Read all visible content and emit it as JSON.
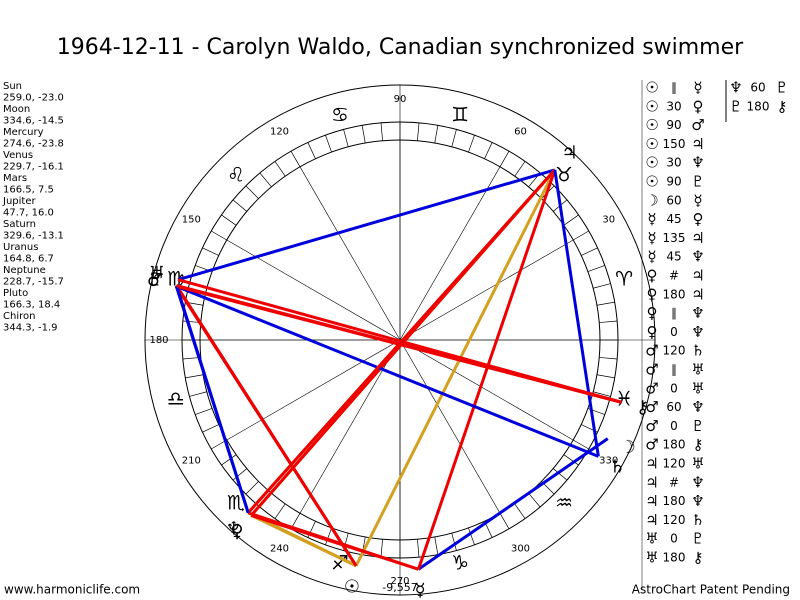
{
  "header": {
    "title": "1964-12-11 - Carolyn Waldo, Canadian synchronized swimmer"
  },
  "planets": [
    {
      "name": "Sun",
      "glyph": "☉",
      "position": "259.0, -23.0"
    },
    {
      "name": "Moon",
      "glyph": "☽",
      "position": "334.6, -14.5"
    },
    {
      "name": "Mercury",
      "glyph": "☿",
      "position": "274.6, -23.8"
    },
    {
      "name": "Venus",
      "glyph": "♀",
      "position": "229.7, -16.1"
    },
    {
      "name": "Mars",
      "glyph": "♂",
      "position": "166.5, 7.5"
    },
    {
      "name": "Jupiter",
      "glyph": "♃",
      "position": "47.7, 16.0"
    },
    {
      "name": "Saturn",
      "glyph": "♄",
      "position": "329.6, -13.1"
    },
    {
      "name": "Uranus",
      "glyph": "♅",
      "position": "164.8, 6.7"
    },
    {
      "name": "Neptune",
      "glyph": "♆",
      "position": "228.7, -15.7"
    },
    {
      "name": "Pluto",
      "glyph": "♇",
      "position": "166.3, 18.4"
    },
    {
      "name": "Chiron",
      "glyph": "⚷",
      "position": "344.3, -1.9"
    }
  ],
  "zodiac": [
    "♈",
    "♉",
    "♊",
    "♋",
    "♌",
    "♍",
    "♎",
    "♏",
    "♐",
    "♑",
    "♒",
    "♓"
  ],
  "degree_labels": [
    30,
    60,
    90,
    120,
    150,
    180,
    210,
    240,
    270,
    300,
    330
  ],
  "wheel_note": "-9,557",
  "aspects": [
    [
      [
        "☉",
        "∥",
        "☿"
      ],
      [
        "☉",
        "30",
        "♀"
      ],
      [
        "☉",
        "90",
        "♂"
      ],
      [
        "☉",
        "150",
        "♃"
      ],
      [
        "☉",
        "30",
        "♆"
      ],
      [
        "☉",
        "90",
        "♇"
      ],
      [
        "☽",
        "60",
        "☿"
      ],
      [
        "☿",
        "45",
        "♀"
      ],
      [
        "☿",
        "135",
        "♃"
      ],
      [
        "☿",
        "45",
        "♆"
      ],
      [
        "♀",
        "#",
        "♃"
      ],
      [
        "♀",
        "180",
        "♃"
      ],
      [
        "♀",
        "∥",
        "♆"
      ],
      [
        "♀",
        "0",
        "♆"
      ],
      [
        "♂",
        "120",
        "♄"
      ],
      [
        "♂",
        "∥",
        "♅"
      ],
      [
        "♂",
        "0",
        "♅"
      ],
      [
        "♂",
        "60",
        "♆"
      ],
      [
        "♂",
        "0",
        "♇"
      ],
      [
        "♂",
        "180",
        "⚷"
      ],
      [
        "♃",
        "120",
        "♅"
      ],
      [
        "♃",
        "#",
        "♆"
      ],
      [
        "♃",
        "180",
        "♆"
      ],
      [
        "♃",
        "120",
        "♄"
      ],
      [
        "♅",
        "0",
        "♇"
      ],
      [
        "♅",
        "180",
        "⚷"
      ]
    ],
    [
      [
        "♆",
        "60",
        "♇"
      ],
      [
        "♇",
        "180",
        "⚷"
      ]
    ]
  ],
  "footer": {
    "left": "www.harmoniclife.com",
    "right": "AstroChart Patent Pending"
  }
}
